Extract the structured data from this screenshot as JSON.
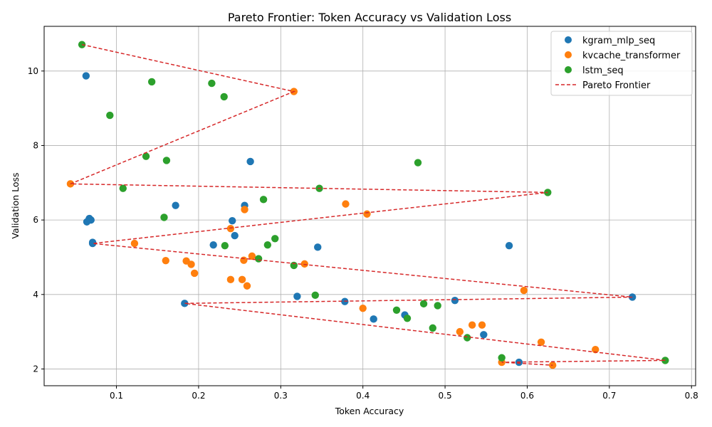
{
  "chart_data": {
    "type": "scatter",
    "title": "Pareto Frontier: Token Accuracy vs Validation Loss",
    "xlabel": "Token Accuracy",
    "ylabel": "Validation Loss",
    "xlim": [
      0.012,
      0.805
    ],
    "ylim": [
      1.55,
      11.2
    ],
    "xticks": [
      0.1,
      0.2,
      0.3,
      0.4,
      0.5,
      0.6,
      0.7,
      0.8
    ],
    "xtick_labels": [
      "0.1",
      "0.2",
      "0.3",
      "0.4",
      "0.5",
      "0.6",
      "0.7",
      "0.8"
    ],
    "yticks": [
      2,
      4,
      6,
      8,
      10
    ],
    "ytick_labels": [
      "2",
      "4",
      "6",
      "8",
      "10"
    ],
    "grid": true,
    "legend_position": "top-right",
    "series": [
      {
        "name": "kgram_mlp_seq",
        "color": "#1f77b4",
        "points": [
          [
            0.063,
            9.87
          ],
          [
            0.263,
            7.57
          ],
          [
            0.172,
            6.39
          ],
          [
            0.256,
            6.39
          ],
          [
            0.067,
            6.04
          ],
          [
            0.069,
            6.0
          ],
          [
            0.064,
            5.95
          ],
          [
            0.241,
            5.98
          ],
          [
            0.244,
            5.58
          ],
          [
            0.071,
            5.4
          ],
          [
            0.071,
            5.37
          ],
          [
            0.218,
            5.33
          ],
          [
            0.345,
            5.27
          ],
          [
            0.578,
            5.31
          ],
          [
            0.728,
            3.93
          ],
          [
            0.512,
            3.84
          ],
          [
            0.378,
            3.81
          ],
          [
            0.32,
            3.95
          ],
          [
            0.183,
            3.76
          ],
          [
            0.413,
            3.34
          ],
          [
            0.451,
            3.45
          ],
          [
            0.547,
            2.92
          ],
          [
            0.59,
            2.18
          ]
        ]
      },
      {
        "name": "kvcache_transformer",
        "color": "#ff7f0e",
        "points": [
          [
            0.316,
            9.45
          ],
          [
            0.044,
            6.97
          ],
          [
            0.379,
            6.43
          ],
          [
            0.256,
            6.28
          ],
          [
            0.405,
            6.16
          ],
          [
            0.239,
            5.77
          ],
          [
            0.122,
            5.37
          ],
          [
            0.265,
            5.03
          ],
          [
            0.16,
            4.91
          ],
          [
            0.185,
            4.9
          ],
          [
            0.191,
            4.81
          ],
          [
            0.255,
            4.92
          ],
          [
            0.329,
            4.82
          ],
          [
            0.195,
            4.57
          ],
          [
            0.239,
            4.4
          ],
          [
            0.253,
            4.4
          ],
          [
            0.259,
            4.23
          ],
          [
            0.596,
            4.11
          ],
          [
            0.4,
            3.63
          ],
          [
            0.533,
            3.18
          ],
          [
            0.545,
            3.18
          ],
          [
            0.518,
            3.0
          ],
          [
            0.617,
            2.72
          ],
          [
            0.683,
            2.52
          ],
          [
            0.569,
            2.18
          ],
          [
            0.631,
            2.1
          ]
        ]
      },
      {
        "name": "lstm_seq",
        "color": "#2ca02c",
        "points": [
          [
            0.058,
            10.71
          ],
          [
            0.143,
            9.71
          ],
          [
            0.216,
            9.67
          ],
          [
            0.231,
            9.31
          ],
          [
            0.092,
            8.81
          ],
          [
            0.136,
            7.71
          ],
          [
            0.161,
            7.6
          ],
          [
            0.467,
            7.54
          ],
          [
            0.108,
            6.85
          ],
          [
            0.347,
            6.85
          ],
          [
            0.625,
            6.74
          ],
          [
            0.279,
            6.55
          ],
          [
            0.158,
            6.07
          ],
          [
            0.293,
            5.5
          ],
          [
            0.232,
            5.31
          ],
          [
            0.284,
            5.33
          ],
          [
            0.273,
            4.96
          ],
          [
            0.316,
            4.78
          ],
          [
            0.342,
            3.98
          ],
          [
            0.474,
            3.75
          ],
          [
            0.491,
            3.7
          ],
          [
            0.441,
            3.58
          ],
          [
            0.454,
            3.36
          ],
          [
            0.485,
            3.1
          ],
          [
            0.527,
            2.84
          ],
          [
            0.569,
            2.3
          ],
          [
            0.768,
            2.23
          ]
        ]
      }
    ],
    "pareto_frontier": {
      "name": "Pareto Frontier",
      "color": "#d62728",
      "style": "dashed",
      "points": [
        [
          0.058,
          10.71
        ],
        [
          0.316,
          9.45
        ],
        [
          0.044,
          6.97
        ],
        [
          0.625,
          6.74
        ],
        [
          0.071,
          5.37
        ],
        [
          0.728,
          3.93
        ],
        [
          0.183,
          3.76
        ],
        [
          0.768,
          2.23
        ],
        [
          0.569,
          2.18
        ],
        [
          0.631,
          2.1
        ]
      ]
    }
  }
}
